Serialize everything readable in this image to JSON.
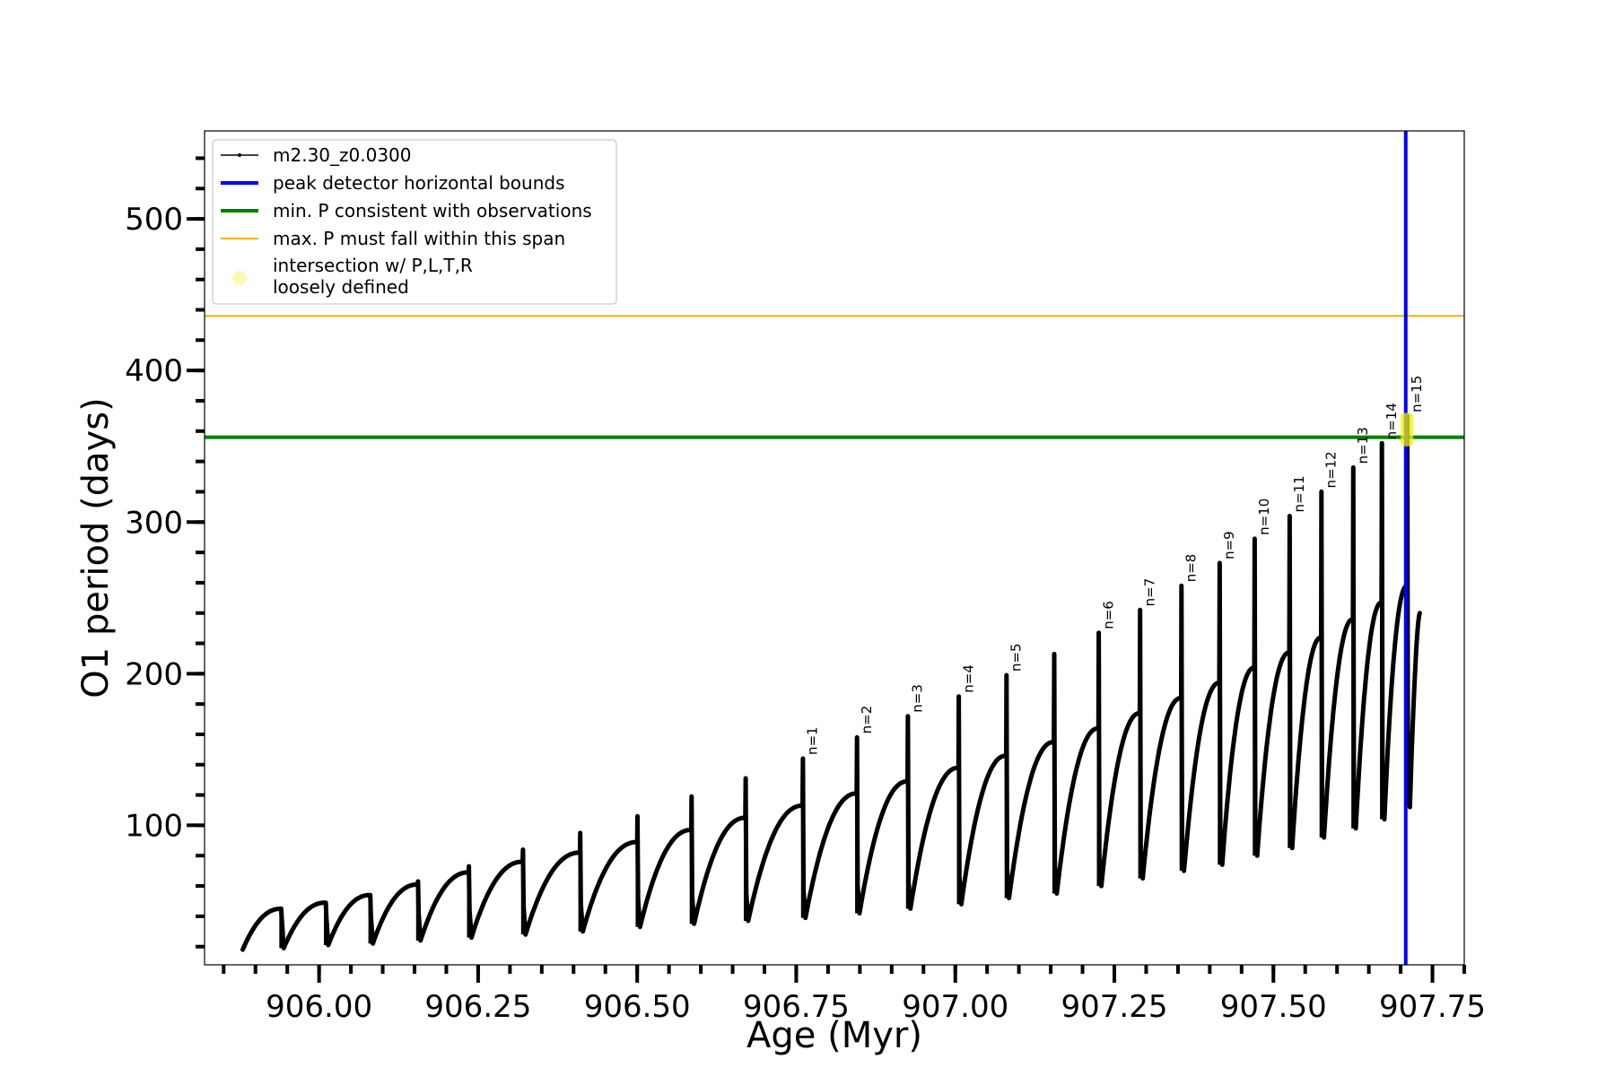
{
  "chart_data": {
    "type": "line",
    "xlabel": "Age (Myr)",
    "ylabel": "O1 period (days)",
    "xlim": [
      905.82,
      907.8
    ],
    "ylim": [
      8,
      558
    ],
    "x_ticks": [
      906.0,
      906.25,
      906.5,
      906.75,
      907.0,
      907.25,
      907.5,
      907.75
    ],
    "x_tick_labels": [
      "906.00",
      "906.25",
      "906.50",
      "906.75",
      "907.00",
      "907.25",
      "907.50",
      "907.75"
    ],
    "x_minor_step": 0.05,
    "y_ticks": [
      100,
      200,
      300,
      400,
      500
    ],
    "y_tick_labels": [
      "100",
      "200",
      "300",
      "400",
      "500"
    ],
    "y_minor_step": 20,
    "grid": false,
    "legend_position": "upper-left",
    "series": [
      {
        "name": "m2.30_z0.0300",
        "color": "#000000",
        "style": "line-with-points",
        "start": {
          "age": 905.88,
          "period": 18
        },
        "end": {
          "age": 907.73,
          "period": 240
        },
        "pulses": [
          {
            "age": 905.94,
            "peak": 45,
            "spike": 45,
            "floor": 19
          },
          {
            "age": 906.01,
            "peak": 49,
            "spike": 49,
            "floor": 21
          },
          {
            "age": 906.08,
            "peak": 54,
            "spike": 54,
            "floor": 22
          },
          {
            "age": 906.155,
            "peak": 61,
            "spike": 63,
            "floor": 24
          },
          {
            "age": 906.235,
            "peak": 69,
            "spike": 73,
            "floor": 26
          },
          {
            "age": 906.32,
            "peak": 76,
            "spike": 84,
            "floor": 28
          },
          {
            "age": 906.41,
            "peak": 82,
            "spike": 95,
            "floor": 30
          },
          {
            "age": 906.5,
            "peak": 89,
            "spike": 106,
            "floor": 33
          },
          {
            "age": 906.585,
            "peak": 97,
            "spike": 119,
            "floor": 35
          },
          {
            "age": 906.67,
            "peak": 105,
            "spike": 131,
            "floor": 37
          },
          {
            "age": 906.76,
            "peak": 113,
            "spike": 144,
            "floor": 39
          },
          {
            "age": 906.845,
            "peak": 121,
            "spike": 158,
            "floor": 42
          },
          {
            "age": 906.925,
            "peak": 129,
            "spike": 172,
            "floor": 45
          },
          {
            "age": 907.005,
            "peak": 138,
            "spike": 185,
            "floor": 48
          },
          {
            "age": 907.08,
            "peak": 146,
            "spike": 199,
            "floor": 52
          },
          {
            "age": 907.155,
            "peak": 155,
            "spike": 213,
            "floor": 55
          },
          {
            "age": 907.225,
            "peak": 164,
            "spike": 227,
            "floor": 60
          },
          {
            "age": 907.29,
            "peak": 174,
            "spike": 242,
            "floor": 65
          },
          {
            "age": 907.355,
            "peak": 184,
            "spike": 258,
            "floor": 70
          },
          {
            "age": 907.415,
            "peak": 194,
            "spike": 273,
            "floor": 74
          },
          {
            "age": 907.47,
            "peak": 204,
            "spike": 289,
            "floor": 80
          },
          {
            "age": 907.525,
            "peak": 214,
            "spike": 304,
            "floor": 85
          },
          {
            "age": 907.575,
            "peak": 224,
            "spike": 320,
            "floor": 92
          },
          {
            "age": 907.625,
            "peak": 236,
            "spike": 336,
            "floor": 98
          },
          {
            "age": 907.67,
            "peak": 247,
            "spike": 352,
            "floor": 104
          },
          {
            "age": 907.71,
            "peak": 258,
            "spike": 370,
            "floor": 112
          }
        ]
      }
    ],
    "vertical_lines": [
      {
        "name": "peak detector horizontal bounds",
        "x": 907.708,
        "color": "#0000ff"
      }
    ],
    "horizontal_lines": [
      {
        "name": "min. P consistent with observations",
        "y": 356,
        "color": "#008000"
      },
      {
        "name": "max. P must fall within this span",
        "y": 436,
        "color": "#ffa500"
      }
    ],
    "highlight": {
      "name": "intersection w/ P,L,T,R\nloosely defined",
      "x": 907.71,
      "y_range": [
        350,
        372
      ],
      "color": "#f0f000"
    },
    "peak_labels": [
      {
        "text": "n=1",
        "x": 906.76,
        "y": 144
      },
      {
        "text": "n=2",
        "x": 906.845,
        "y": 158
      },
      {
        "text": "n=3",
        "x": 906.925,
        "y": 172
      },
      {
        "text": "n=4",
        "x": 907.005,
        "y": 185
      },
      {
        "text": "n=5",
        "x": 907.08,
        "y": 199
      },
      {
        "text": "n=6",
        "x": 907.225,
        "y": 227
      },
      {
        "text": "n=7",
        "x": 907.29,
        "y": 242
      },
      {
        "text": "n=8",
        "x": 907.355,
        "y": 258
      },
      {
        "text": "n=9",
        "x": 907.415,
        "y": 273
      },
      {
        "text": "n=10",
        "x": 907.47,
        "y": 289
      },
      {
        "text": "n=11",
        "x": 907.525,
        "y": 304
      },
      {
        "text": "n=12",
        "x": 907.575,
        "y": 320
      },
      {
        "text": "n=13",
        "x": 907.625,
        "y": 336
      },
      {
        "text": "n=14",
        "x": 907.67,
        "y": 352
      },
      {
        "text": "n=15",
        "x": 907.71,
        "y": 370
      }
    ],
    "legend": {
      "entries": [
        {
          "label": "m2.30_z0.0300",
          "kind": "line-marker",
          "color": "#000000"
        },
        {
          "label": "peak detector horizontal bounds",
          "kind": "thick-line",
          "color": "#0000ff"
        },
        {
          "label": "min. P consistent with observations",
          "kind": "thick-line",
          "color": "#008000"
        },
        {
          "label": "max. P must fall within this span",
          "kind": "thin-line",
          "color": "#ffa500"
        },
        {
          "label": "intersection w/ P,L,T,R",
          "label2": "loosely defined",
          "kind": "dot",
          "color": "#fafab4"
        }
      ]
    }
  }
}
